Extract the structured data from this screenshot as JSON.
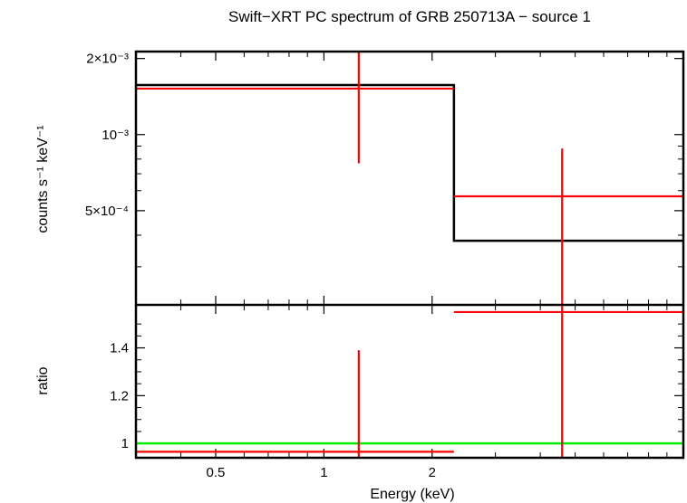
{
  "chart_data": [
    {
      "panel": "spectrum",
      "type": "line",
      "title": "Swift−XRT PC spectrum of GRB 250713A − source 1",
      "xlabel": "Energy (keV)",
      "ylabel": "counts s⁻¹ keV⁻¹",
      "x_scale": "log",
      "y_scale": "log",
      "xlim": [
        0.3,
        10.0
      ],
      "ylim": [
        0.000212,
        0.00213
      ],
      "y_ticks": [
        {
          "value": 0.002,
          "label": "2×10⁻³"
        },
        {
          "value": 0.001,
          "label": "10⁻³"
        },
        {
          "value": 0.0005,
          "label": "5×10⁻⁴"
        }
      ],
      "grid": false,
      "series": [
        {
          "role": "data",
          "color": "#ff0000",
          "points": [
            {
              "x": 1.25,
              "xlo": 0.3,
              "xhi": 2.3,
              "y": 0.00152,
              "ylo": 0.00077,
              "yhi": 0.00213
            },
            {
              "x": 4.6,
              "xlo": 2.3,
              "xhi": 10.0,
              "y": 0.00057,
              "ylo": 0.000212,
              "yhi": 0.00088
            }
          ]
        },
        {
          "role": "model",
          "color": "#000000",
          "steps": [
            {
              "xlo": 0.3,
              "xhi": 2.3,
              "y": 0.00157
            },
            {
              "xlo": 2.3,
              "xhi": 10.0,
              "y": 0.00038
            }
          ]
        }
      ]
    },
    {
      "panel": "ratio",
      "type": "line",
      "xlabel": "Energy (keV)",
      "ylabel": "ratio",
      "x_scale": "log",
      "xlim": [
        0.3,
        10.0
      ],
      "ylim": [
        0.94,
        1.58
      ],
      "x_ticks": [
        {
          "value": 0.5,
          "label": "0.5"
        },
        {
          "value": 1,
          "label": "1"
        },
        {
          "value": 2,
          "label": "2"
        }
      ],
      "y_ticks": [
        {
          "value": 1.0,
          "label": "1"
        },
        {
          "value": 1.2,
          "label": "1.2"
        },
        {
          "value": 1.4,
          "label": "1.4"
        }
      ],
      "reference_line": {
        "y": 1.0,
        "color": "#00ee00"
      },
      "series": [
        {
          "role": "data",
          "color": "#ff0000",
          "points": [
            {
              "x": 1.25,
              "xlo": 0.3,
              "xhi": 2.3,
              "y": 0.965,
              "ylo": 0.94,
              "yhi": 1.39
            },
            {
              "x": 4.6,
              "xlo": 2.3,
              "xhi": 10.0,
              "y": 1.55,
              "ylo": 0.94,
              "yhi": 1.58
            }
          ]
        }
      ]
    }
  ]
}
